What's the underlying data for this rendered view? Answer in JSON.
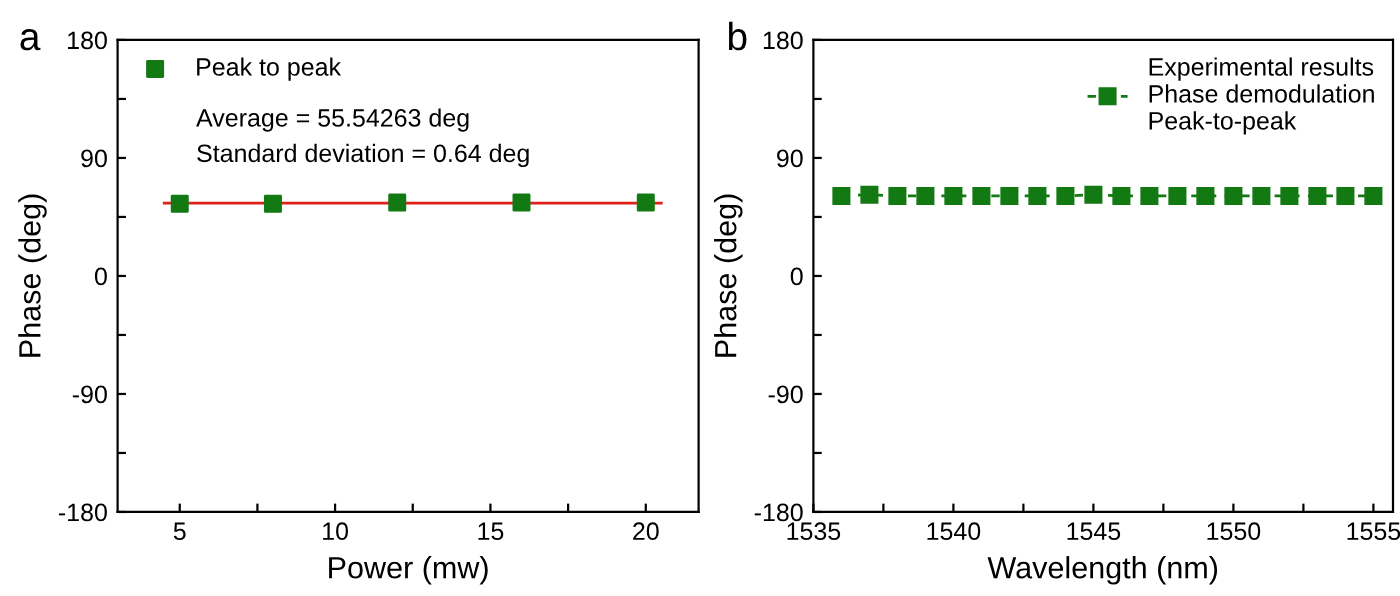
{
  "chart_data": [
    {
      "type": "scatter",
      "title": "a",
      "xlabel": "Power (mw)",
      "ylabel": "Phase (deg)",
      "x": [
        5,
        8,
        12,
        16,
        20
      ],
      "series": [
        {
          "name": "Peak to peak",
          "color": "#137a13",
          "values": [
            55,
            55,
            56,
            56,
            56
          ],
          "marker": "square"
        },
        {
          "type": "line",
          "color": "#e0201b",
          "x": [
            4.5,
            20.5
          ],
          "values": [
            55.54263,
            55.54263
          ],
          "marker": "none",
          "line_style": "solid"
        }
      ],
      "annotations": [
        "Average = 55.54263 deg",
        "Standard deviation = 0.64 deg"
      ],
      "xlim": [
        3,
        21.7
      ],
      "xticks": [
        5,
        {
          "value": 7.5,
          "label": null
        },
        10,
        {
          "value": 12.5,
          "label": null
        },
        15,
        {
          "value": 17.5,
          "label": null
        },
        20
      ],
      "ylim": [
        -180,
        180
      ],
      "yticks": [
        -180,
        {
          "value": -135,
          "label": null
        },
        -90,
        {
          "value": -45,
          "label": null
        },
        0,
        {
          "value": 45,
          "label": null
        },
        90,
        {
          "value": 135,
          "label": null
        },
        180
      ],
      "legend": "top left",
      "grid": false
    },
    {
      "type": "line",
      "title": "b",
      "xlabel": "Wavelength (nm)",
      "ylabel": "Phase (deg)",
      "x": [
        1536,
        1537,
        1538,
        1539,
        1540,
        1541,
        1542,
        1543,
        1544,
        1545,
        1546,
        1547,
        1548,
        1549,
        1550,
        1551,
        1552,
        1553,
        1554,
        1555
      ],
      "series": [
        {
          "name": "Experimental results\nPhase demodulation\nPeak-to-peak",
          "color": "#137a13",
          "values": [
            61,
            62,
            61,
            61,
            61,
            61,
            61,
            61,
            61,
            62,
            61,
            61,
            61,
            61,
            61,
            61,
            61,
            61,
            61,
            61
          ],
          "marker": "square",
          "line_style": "dashed"
        }
      ],
      "xlim": [
        1535,
        1555.7
      ],
      "xticks": [
        1535,
        {
          "value": 1537.5,
          "label": null
        },
        1540,
        {
          "value": 1542.5,
          "label": null
        },
        1545,
        {
          "value": 1547.5,
          "label": null
        },
        1550,
        {
          "value": 1552.5,
          "label": null
        },
        1555
      ],
      "ylim": [
        -180,
        180
      ],
      "yticks": [
        -180,
        {
          "value": -135,
          "label": null
        },
        -90,
        {
          "value": -45,
          "label": null
        },
        0,
        {
          "value": 45,
          "label": null
        },
        90,
        {
          "value": 135,
          "label": null
        },
        180
      ],
      "legend": "top right",
      "grid": false
    }
  ]
}
